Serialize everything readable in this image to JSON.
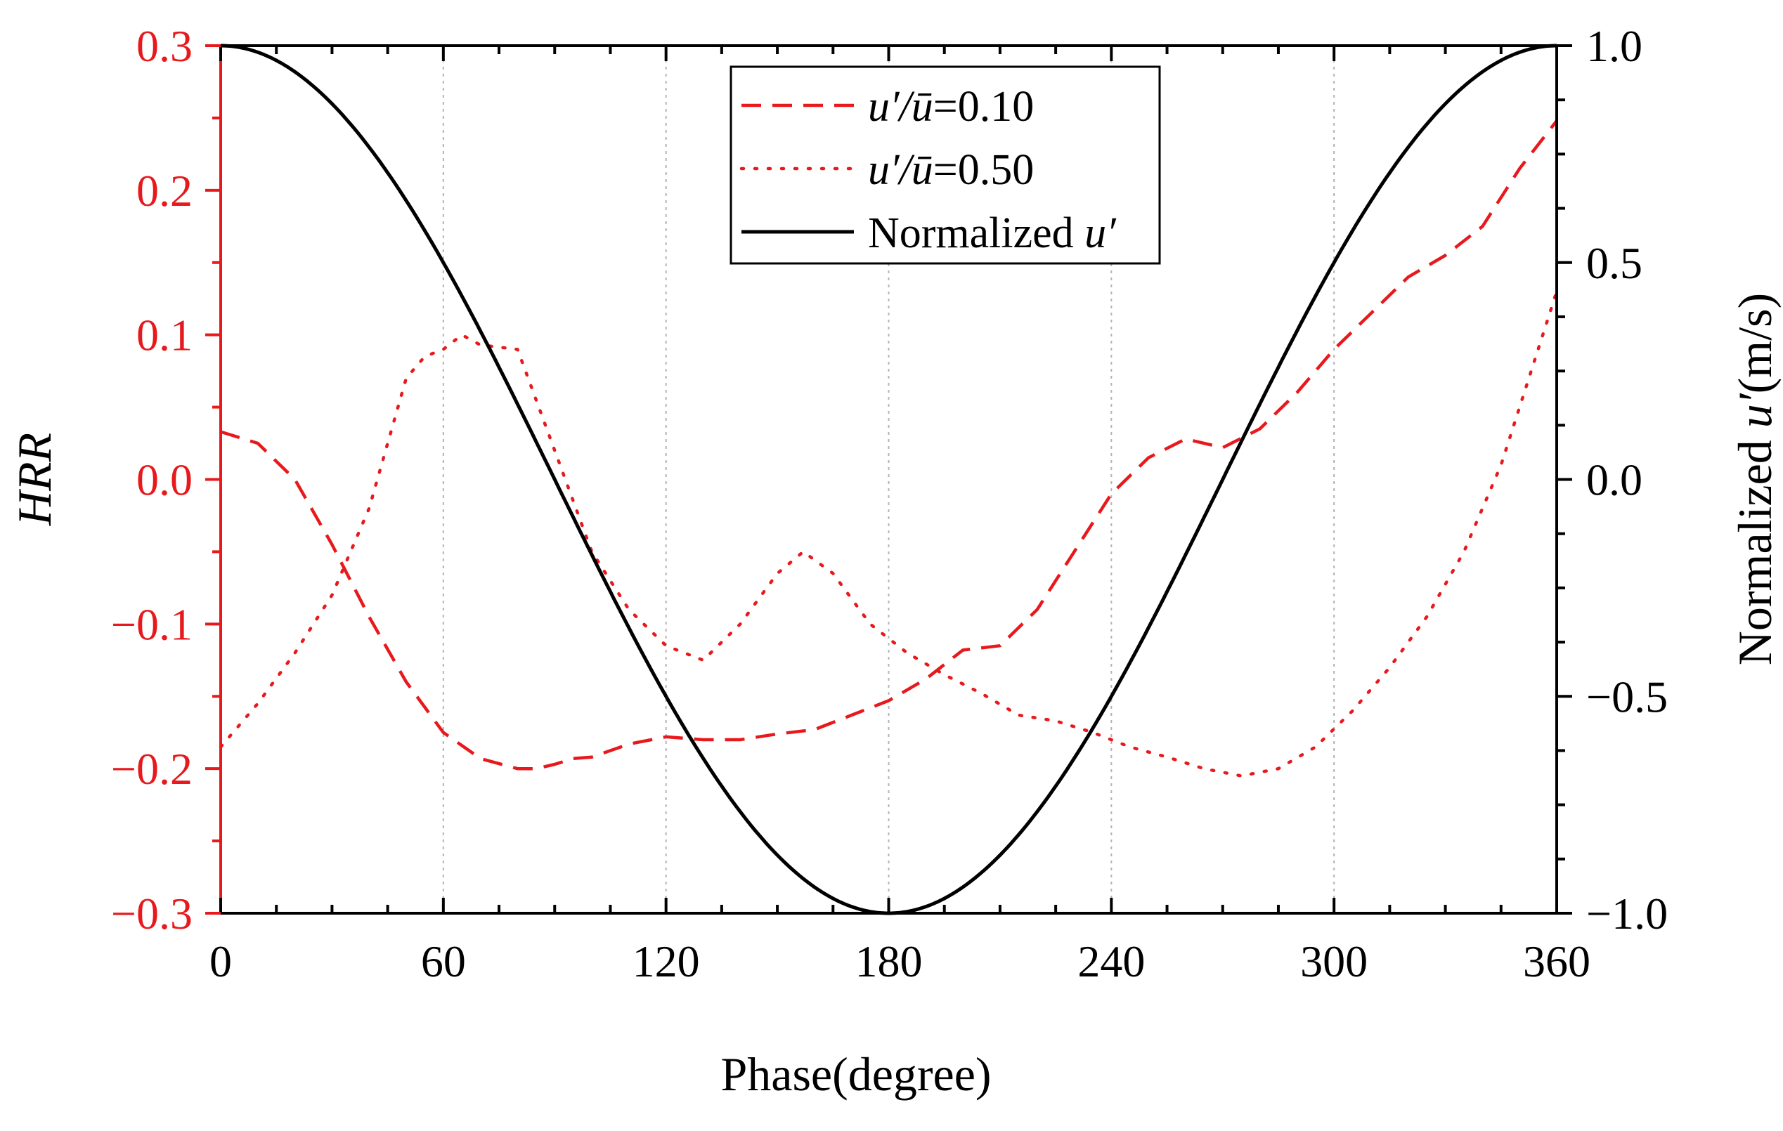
{
  "chart_data": {
    "type": "line",
    "title": "",
    "xlabel": "Phase(degree)",
    "ylabel_left": "HRR",
    "ylabel_right_prefix": "Normalized ",
    "ylabel_right_var": "u′",
    "ylabel_right_suffix": "(m/s)",
    "xlim": [
      0,
      360
    ],
    "ylim_left": [
      -0.3,
      0.3
    ],
    "ylim_right": [
      -1.0,
      1.0
    ],
    "x_ticks": [
      {
        "value": 0,
        "label": "0"
      },
      {
        "value": 60,
        "label": "60"
      },
      {
        "value": 120,
        "label": "120"
      },
      {
        "value": 180,
        "label": "180"
      },
      {
        "value": 240,
        "label": "240"
      },
      {
        "value": 300,
        "label": "300"
      },
      {
        "value": 360,
        "label": "360"
      }
    ],
    "y_left_ticks": [
      {
        "value": 0.3,
        "label": "0.3"
      },
      {
        "value": 0.2,
        "label": "0.2"
      },
      {
        "value": 0.1,
        "label": "0.1"
      },
      {
        "value": 0.0,
        "label": "0.0"
      },
      {
        "value": -0.1,
        "label": "−0.1"
      },
      {
        "value": -0.2,
        "label": "−0.2"
      },
      {
        "value": -0.3,
        "label": "−0.3"
      }
    ],
    "y_right_ticks": [
      {
        "value": 1.0,
        "label": "1.0"
      },
      {
        "value": 0.5,
        "label": "0.5"
      },
      {
        "value": 0.0,
        "label": "0.0"
      },
      {
        "value": -0.5,
        "label": "−0.5"
      },
      {
        "value": -1.0,
        "label": "−1.0"
      }
    ],
    "grid": "vertical dotted at major x ticks",
    "legend_position": "top-center",
    "series": [
      {
        "name": "u′/ū=0.10",
        "legend_var": "u′/ū",
        "legend_value": "=0.10",
        "axis": "left",
        "style": "dashed",
        "color": "#e8191c",
        "x": [
          0,
          10,
          20,
          30,
          40,
          50,
          60,
          70,
          80,
          85,
          90,
          95,
          100,
          110,
          120,
          130,
          140,
          150,
          160,
          170,
          180,
          190,
          200,
          210,
          220,
          230,
          240,
          250,
          260,
          270,
          280,
          290,
          300,
          310,
          320,
          330,
          340,
          350,
          360
        ],
        "values": [
          0.033,
          0.025,
          0.0,
          -0.045,
          -0.095,
          -0.14,
          -0.175,
          -0.193,
          -0.2,
          -0.2,
          -0.197,
          -0.193,
          -0.192,
          -0.183,
          -0.178,
          -0.18,
          -0.18,
          -0.176,
          -0.173,
          -0.163,
          -0.153,
          -0.138,
          -0.118,
          -0.115,
          -0.09,
          -0.05,
          -0.01,
          0.015,
          0.028,
          0.022,
          0.035,
          0.06,
          0.09,
          0.115,
          0.14,
          0.155,
          0.175,
          0.215,
          0.248
        ]
      },
      {
        "name": "u′/ū=0.50",
        "legend_var": "u′/ū",
        "legend_value": "=0.50",
        "axis": "left",
        "style": "dotted",
        "color": "#e8191c",
        "x": [
          0,
          10,
          20,
          30,
          40,
          50,
          55,
          60,
          65,
          70,
          80,
          90,
          100,
          110,
          120,
          130,
          140,
          150,
          157,
          165,
          175,
          185,
          195,
          205,
          215,
          225,
          235,
          245,
          255,
          265,
          275,
          285,
          295,
          305,
          315,
          325,
          335,
          345,
          355,
          360
        ],
        "values": [
          -0.185,
          -0.155,
          -0.12,
          -0.08,
          -0.02,
          0.07,
          0.085,
          0.09,
          0.1,
          0.093,
          0.09,
          0.02,
          -0.05,
          -0.09,
          -0.115,
          -0.125,
          -0.1,
          -0.065,
          -0.05,
          -0.065,
          -0.1,
          -0.12,
          -0.135,
          -0.148,
          -0.163,
          -0.167,
          -0.175,
          -0.185,
          -0.192,
          -0.2,
          -0.205,
          -0.2,
          -0.185,
          -0.16,
          -0.13,
          -0.095,
          -0.05,
          0.01,
          0.09,
          0.13
        ]
      },
      {
        "name": "Normalized u′",
        "legend_text": "Normalized ",
        "legend_var": "u′",
        "axis": "right",
        "style": "solid",
        "color": "#000000",
        "function": "cos(x)"
      }
    ]
  }
}
